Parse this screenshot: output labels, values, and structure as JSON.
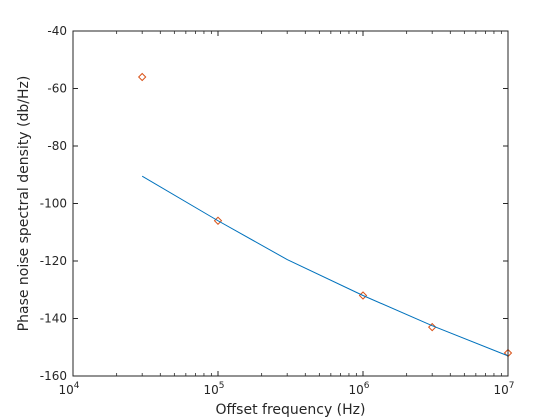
{
  "chart_data": {
    "type": "scatter",
    "title": "",
    "xlabel": "Offset frequency (Hz)",
    "ylabel": "Phase noise spectral density (db/Hz)",
    "xscale": "log",
    "xlim": [
      10000,
      10000000
    ],
    "ylim": [
      -160,
      -40
    ],
    "x_ticks": [
      {
        "value": 10000,
        "base": "10",
        "exp": "4"
      },
      {
        "value": 100000,
        "base": "10",
        "exp": "5"
      },
      {
        "value": 1000000,
        "base": "10",
        "exp": "6"
      },
      {
        "value": 10000000,
        "base": "10",
        "exp": "7"
      }
    ],
    "y_ticks": [
      -40,
      -60,
      -80,
      -100,
      -120,
      -140,
      -160
    ],
    "grid": false,
    "series": [
      {
        "kind": "markers",
        "marker": "circle",
        "color": "#d95319",
        "x": [
          30000,
          100000,
          1000000,
          3000000,
          10000000
        ],
        "y": [
          -56,
          -106,
          -132,
          -143,
          -152
        ]
      },
      {
        "kind": "line",
        "color": "#0072bd",
        "x": [
          30000,
          100000,
          300000,
          1000000,
          3000000,
          10000000
        ],
        "y": [
          -90.5,
          -106.0,
          -119.5,
          -132.0,
          -142.5,
          -153.0
        ]
      }
    ]
  }
}
